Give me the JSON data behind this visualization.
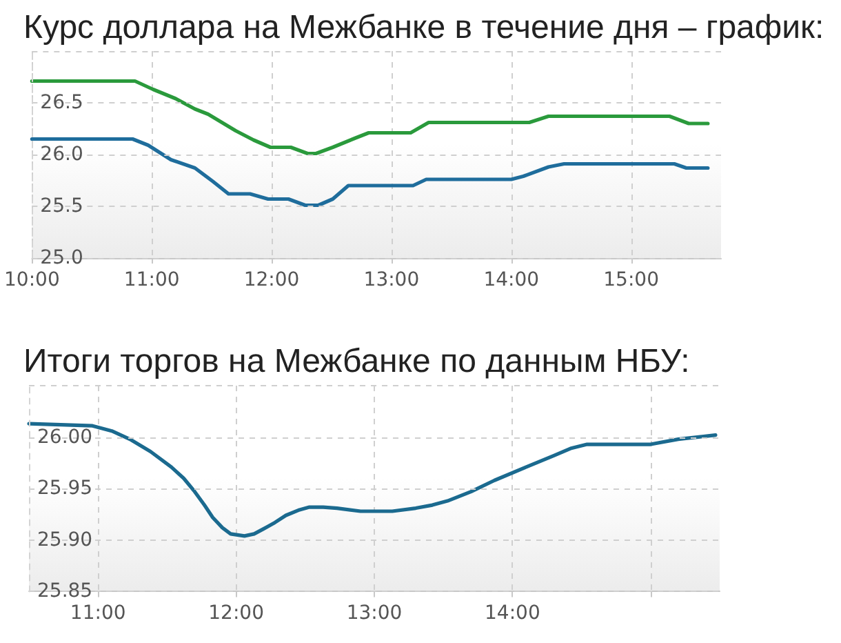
{
  "chart_data": [
    {
      "type": "line",
      "title": "Курс доллара на Межбанке в течение дня – график:",
      "series": [
        {
          "color": "#2a9a3c",
          "x": [
            10.0,
            10.86,
            11.01,
            11.2,
            11.36,
            11.47,
            11.7,
            11.85,
            11.99,
            12.16,
            12.3,
            12.37,
            12.51,
            12.7,
            12.81,
            13.16,
            13.31,
            14.15,
            14.31,
            15.32,
            15.48,
            15.64
          ],
          "values": [
            26.71,
            26.71,
            26.63,
            26.54,
            26.44,
            26.39,
            26.23,
            26.14,
            26.07,
            26.07,
            26.01,
            26.01,
            26.07,
            26.16,
            26.21,
            26.21,
            26.31,
            26.31,
            26.37,
            26.37,
            26.3,
            26.3
          ]
        },
        {
          "color": "#1f6d9c",
          "x": [
            10.0,
            10.84,
            10.97,
            11.16,
            11.36,
            11.51,
            11.64,
            11.82,
            11.97,
            12.14,
            12.28,
            12.39,
            12.51,
            12.64,
            13.18,
            13.29,
            14.0,
            14.1,
            14.31,
            14.44,
            15.36,
            15.46,
            15.64
          ],
          "values": [
            26.15,
            26.15,
            26.09,
            25.95,
            25.87,
            25.74,
            25.62,
            25.62,
            25.57,
            25.57,
            25.51,
            25.51,
            25.57,
            25.7,
            25.7,
            25.76,
            25.76,
            25.79,
            25.88,
            25.91,
            25.91,
            25.87,
            25.87
          ]
        }
      ],
      "xlim": [
        10,
        15.75
      ],
      "xticks": [
        {
          "value": 10,
          "label": "10:00"
        },
        {
          "value": 11,
          "label": "11:00"
        },
        {
          "value": 12,
          "label": "12:00"
        },
        {
          "value": 13,
          "label": "13:00"
        },
        {
          "value": 14,
          "label": "14:00"
        },
        {
          "value": 15,
          "label": "15:00"
        }
      ],
      "ylim": [
        25,
        27
      ],
      "yticks": [
        {
          "value": 25,
          "label": "25.0"
        },
        {
          "value": 25.5,
          "label": "25.5"
        },
        {
          "value": 26,
          "label": "26.0"
        },
        {
          "value": 26.5,
          "label": "26.5"
        },
        {
          "value": 27,
          "label": null
        }
      ],
      "grid": true,
      "marker": "none",
      "line_style": "solid"
    },
    {
      "type": "line",
      "title": "Итоги торгов на Межбанке по данным НБУ:",
      "series": [
        {
          "color": "#1b6a8f",
          "x": [
            10.5,
            10.96,
            11.1,
            11.23,
            11.38,
            11.53,
            11.62,
            11.7,
            11.77,
            11.83,
            11.9,
            11.96,
            12.06,
            12.13,
            12.2,
            12.28,
            12.36,
            12.45,
            12.53,
            12.63,
            12.73,
            12.9,
            13.13,
            13.3,
            13.42,
            13.53,
            13.7,
            13.87,
            14.1,
            14.3,
            14.42,
            14.54,
            15.0,
            15.2,
            15.47
          ],
          "values": [
            26.013,
            26.011,
            26.006,
            25.998,
            25.986,
            25.971,
            25.96,
            25.947,
            25.934,
            25.922,
            25.912,
            25.906,
            25.904,
            25.906,
            25.911,
            25.917,
            25.924,
            25.929,
            25.932,
            25.932,
            25.931,
            25.928,
            25.928,
            25.931,
            25.934,
            25.938,
            25.947,
            25.958,
            25.971,
            25.982,
            25.989,
            25.993,
            25.993,
            25.998,
            26.002
          ]
        }
      ],
      "xlim": [
        10.5,
        15.5
      ],
      "xticks": [
        {
          "value": 11,
          "label": "11:00"
        },
        {
          "value": 12,
          "label": "12:00"
        },
        {
          "value": 13,
          "label": "13:00"
        },
        {
          "value": 14,
          "label": "14:00"
        },
        {
          "value": 15,
          "label": null
        }
      ],
      "ylim": [
        25.85,
        26.05
      ],
      "yticks": [
        {
          "value": 25.85,
          "label": "25.85"
        },
        {
          "value": 25.9,
          "label": "25.90"
        },
        {
          "value": 25.95,
          "label": "25.95"
        },
        {
          "value": 26,
          "label": "26.00"
        },
        {
          "value": 26.05,
          "label": null
        }
      ],
      "grid": true,
      "marker": "none",
      "line_style": "solid"
    }
  ]
}
